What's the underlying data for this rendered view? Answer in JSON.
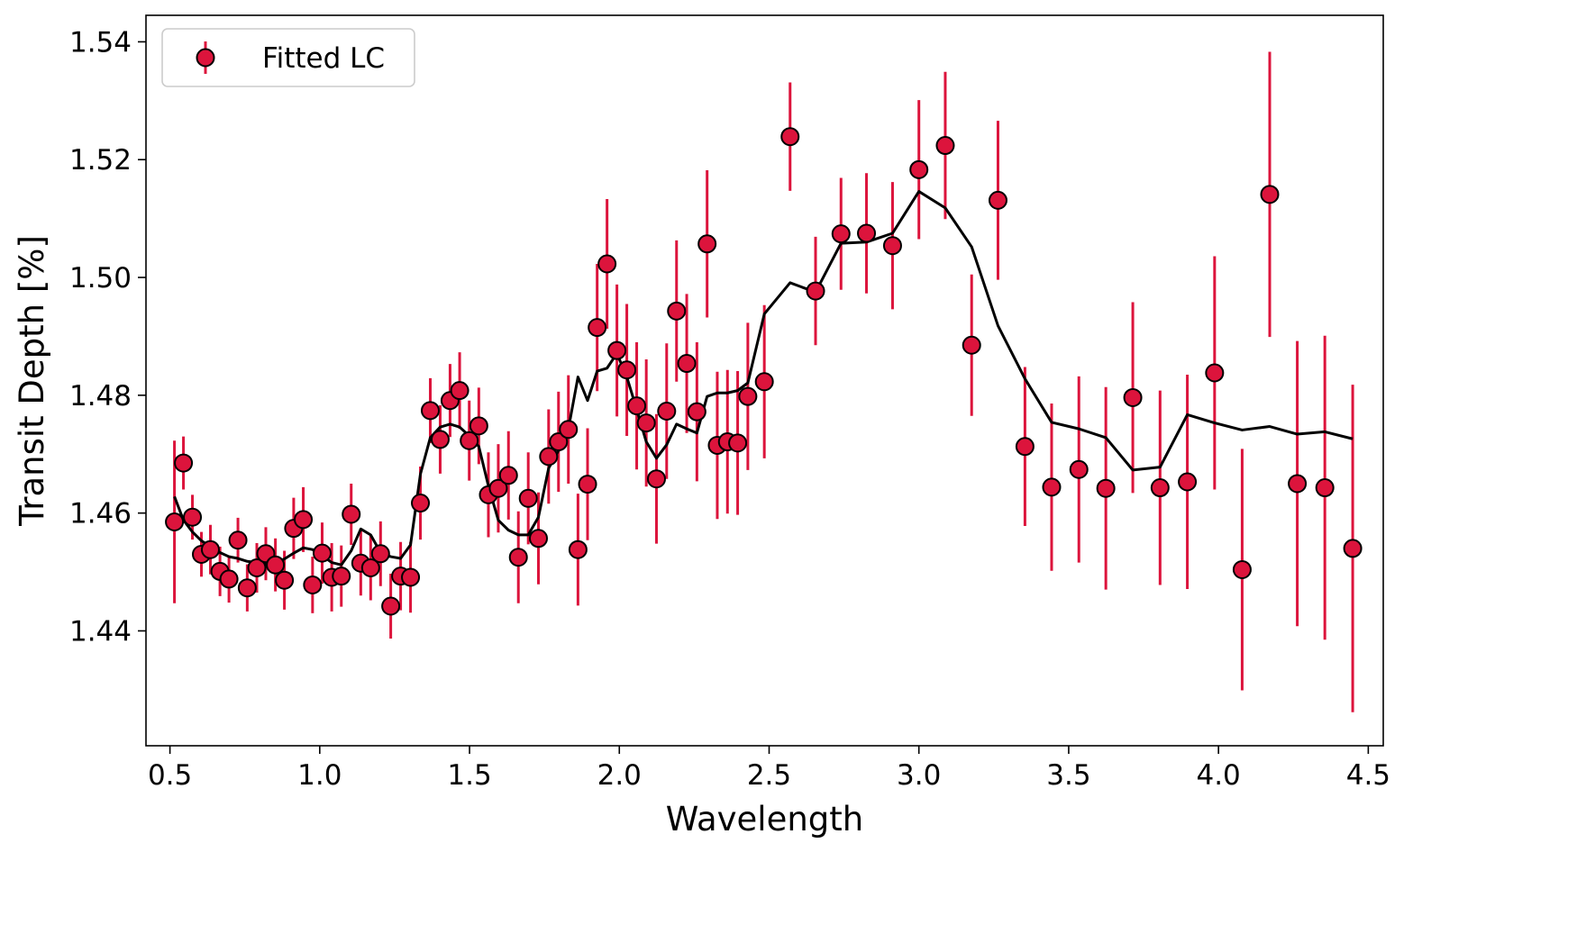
{
  "chart_data": {
    "type": "scatter",
    "title": "",
    "xlabel": "Wavelength",
    "ylabel": "Transit Depth [%]",
    "xlim": [
      0.42,
      4.55
    ],
    "ylim": [
      1.4205,
      1.5445
    ],
    "xticks": [
      0.5,
      1.0,
      1.5,
      2.0,
      2.5,
      3.0,
      3.5,
      4.0,
      4.5
    ],
    "xtick_labels": [
      "0.5",
      "1.0",
      "1.5",
      "2.0",
      "2.5",
      "3.0",
      "3.5",
      "4.0",
      "4.5"
    ],
    "yticks": [
      1.44,
      1.46,
      1.48,
      1.5,
      1.52,
      1.54
    ],
    "ytick_labels": [
      "1.44",
      "1.46",
      "1.48",
      "1.50",
      "1.52",
      "1.54"
    ],
    "grid": false,
    "legend": {
      "position": "top-left",
      "entries": [
        "Fitted LC"
      ]
    },
    "colors": {
      "marker_fill": "#dc143c",
      "marker_edge": "#000000",
      "error_bar": "#dc143c",
      "model_line": "#000000"
    },
    "series": [
      {
        "name": "Fitted LC",
        "kind": "errorbar",
        "x": [
          0.515,
          0.545,
          0.575,
          0.605,
          0.635,
          0.667,
          0.697,
          0.727,
          0.758,
          0.79,
          0.82,
          0.852,
          0.882,
          0.913,
          0.945,
          0.976,
          1.008,
          1.04,
          1.072,
          1.105,
          1.137,
          1.17,
          1.203,
          1.237,
          1.27,
          1.303,
          1.336,
          1.369,
          1.402,
          1.435,
          1.467,
          1.499,
          1.531,
          1.563,
          1.596,
          1.63,
          1.663,
          1.696,
          1.73,
          1.764,
          1.797,
          1.83,
          1.862,
          1.894,
          1.926,
          1.959,
          1.992,
          2.025,
          2.058,
          2.09,
          2.124,
          2.158,
          2.191,
          2.225,
          2.259,
          2.293,
          2.327,
          2.361,
          2.395,
          2.429,
          2.484,
          2.57,
          2.655,
          2.74,
          2.825,
          2.912,
          3.0,
          3.088,
          3.176,
          3.264,
          3.354,
          3.443,
          3.534,
          3.624,
          3.714,
          3.805,
          3.896,
          3.987,
          4.079,
          4.171,
          4.263,
          4.355,
          4.448
        ],
        "y": [
          1.4585,
          1.4685,
          1.4593,
          1.453,
          1.4538,
          1.4501,
          1.4488,
          1.4554,
          1.4473,
          1.4507,
          1.4531,
          1.4512,
          1.4486,
          1.4574,
          1.4589,
          1.4478,
          1.4532,
          1.4491,
          1.4493,
          1.4598,
          1.4515,
          1.4507,
          1.4531,
          1.4442,
          1.4493,
          1.4491,
          1.4617,
          1.4774,
          1.4725,
          1.4791,
          1.4808,
          1.4723,
          1.4748,
          1.4631,
          1.4642,
          1.4664,
          1.4525,
          1.4625,
          1.4557,
          1.4696,
          1.4721,
          1.4742,
          1.4538,
          1.4649,
          1.4915,
          1.5023,
          1.4876,
          1.4843,
          1.4782,
          1.4753,
          1.4658,
          1.4773,
          1.4943,
          1.4854,
          1.4772,
          1.5057,
          1.4715,
          1.4721,
          1.4719,
          1.4798,
          1.4823,
          1.5239,
          1.4977,
          1.5074,
          1.5075,
          1.5054,
          1.5183,
          1.5224,
          1.4885,
          1.5131,
          1.4713,
          1.4644,
          1.4674,
          1.4642,
          1.4796,
          1.4643,
          1.4653,
          1.4838,
          1.4504,
          1.5141,
          1.465,
          1.4643,
          1.454
        ],
        "yerr": [
          0.0138,
          0.0045,
          0.0038,
          0.0038,
          0.0042,
          0.0042,
          0.004,
          0.0038,
          0.004,
          0.0042,
          0.0045,
          0.0045,
          0.005,
          0.0052,
          0.0055,
          0.0048,
          0.0052,
          0.0058,
          0.0052,
          0.0052,
          0.0055,
          0.0055,
          0.0055,
          0.0055,
          0.0058,
          0.006,
          0.0062,
          0.0055,
          0.0058,
          0.0062,
          0.0065,
          0.0068,
          0.0065,
          0.0072,
          0.0075,
          0.0075,
          0.0078,
          0.0078,
          0.0078,
          0.008,
          0.0085,
          0.0092,
          0.0095,
          0.0095,
          0.0108,
          0.011,
          0.0112,
          0.0112,
          0.0108,
          0.0108,
          0.011,
          0.0115,
          0.012,
          0.0118,
          0.0118,
          0.0125,
          0.0125,
          0.0122,
          0.0122,
          0.0125,
          0.013,
          0.0092,
          0.0092,
          0.0095,
          0.0102,
          0.0108,
          0.0118,
          0.0125,
          0.012,
          0.0135,
          0.0135,
          0.0142,
          0.0158,
          0.0172,
          0.0162,
          0.0165,
          0.0182,
          0.0198,
          0.0205,
          0.0242,
          0.0242,
          0.0258,
          0.0278
        ]
      },
      {
        "name": "model",
        "kind": "line",
        "x": [
          0.515,
          0.545,
          0.575,
          0.605,
          0.635,
          0.667,
          0.697,
          0.727,
          0.758,
          0.79,
          0.82,
          0.852,
          0.882,
          0.913,
          0.945,
          0.976,
          1.008,
          1.04,
          1.072,
          1.105,
          1.137,
          1.17,
          1.203,
          1.237,
          1.27,
          1.303,
          1.336,
          1.369,
          1.402,
          1.435,
          1.467,
          1.499,
          1.531,
          1.563,
          1.596,
          1.63,
          1.663,
          1.696,
          1.73,
          1.764,
          1.797,
          1.83,
          1.862,
          1.894,
          1.926,
          1.959,
          1.992,
          2.025,
          2.058,
          2.09,
          2.124,
          2.158,
          2.191,
          2.225,
          2.259,
          2.293,
          2.327,
          2.361,
          2.395,
          2.429,
          2.484,
          2.57,
          2.655,
          2.74,
          2.825,
          2.912,
          3.0,
          3.088,
          3.176,
          3.264,
          3.354,
          3.443,
          3.534,
          3.624,
          3.714,
          3.805,
          3.896,
          3.987,
          4.079,
          4.171,
          4.263,
          4.355,
          4.448
        ],
        "y": [
          1.4628,
          1.4588,
          1.4568,
          1.4553,
          1.4543,
          1.4533,
          1.4526,
          1.4523,
          1.4518,
          1.4516,
          1.4513,
          1.4516,
          1.4522,
          1.4532,
          1.4541,
          1.4538,
          1.4528,
          1.4516,
          1.4512,
          1.4536,
          1.4573,
          1.4563,
          1.4533,
          1.4526,
          1.4523,
          1.4546,
          1.4666,
          1.4728,
          1.4746,
          1.4751,
          1.4746,
          1.4731,
          1.4713,
          1.4646,
          1.4588,
          1.4571,
          1.4563,
          1.4563,
          1.4593,
          1.4676,
          1.4706,
          1.4743,
          1.4831,
          1.4791,
          1.4841,
          1.4846,
          1.4871,
          1.4831,
          1.4776,
          1.4721,
          1.4693,
          1.4716,
          1.4751,
          1.4743,
          1.4736,
          1.4798,
          1.4804,
          1.4804,
          1.4808,
          1.4821,
          1.4938,
          1.4991,
          1.4975,
          1.5058,
          1.506,
          1.5075,
          1.5146,
          1.5118,
          1.5052,
          1.4918,
          1.4828,
          1.4754,
          1.4743,
          1.4728,
          1.4673,
          1.4678,
          1.4767,
          1.4753,
          1.4741,
          1.4747,
          1.4734,
          1.4738,
          1.4726
        ]
      }
    ]
  }
}
